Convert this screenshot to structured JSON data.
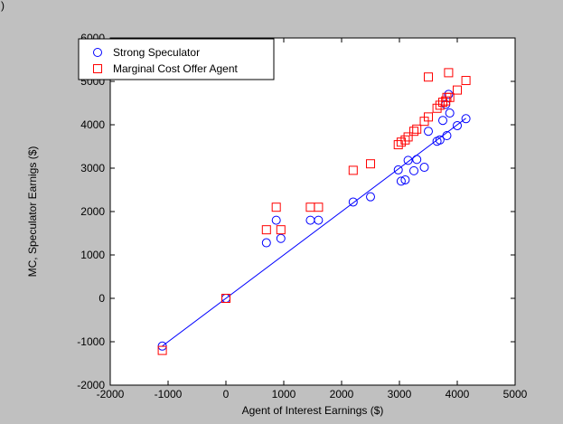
{
  "header": {
    "corner_text": ")"
  },
  "chart_data": {
    "type": "scatter",
    "title": "",
    "xlabel": "Agent of Interest Earnings ($)",
    "ylabel": "MC, Speculator Earnigs ($)",
    "xlim": [
      -2000,
      5000
    ],
    "ylim": [
      -2000,
      6000
    ],
    "xticks": [
      -2000,
      -1000,
      0,
      1000,
      2000,
      3000,
      4000,
      5000
    ],
    "yticks": [
      -2000,
      -1000,
      0,
      1000,
      2000,
      3000,
      4000,
      5000,
      6000
    ],
    "xtick_labels": [
      "-2000",
      "-1000",
      "0",
      "1000",
      "2000",
      "3000",
      "4000",
      "5000"
    ],
    "ytick_labels": [
      "-2000",
      "-1000",
      "0",
      "1000",
      "2000",
      "3000",
      "4000",
      "5000",
      "6000"
    ],
    "grid": false,
    "legend_position": "top-left",
    "series": [
      {
        "name": "Strong Speculator",
        "marker": "circle",
        "color": "#0000ff",
        "x": [
          -1100,
          0,
          700,
          870,
          950,
          1460,
          1600,
          2200,
          2500,
          2980,
          3030,
          3100,
          3150,
          3250,
          3300,
          3430,
          3500,
          3650,
          3700,
          3750,
          3800,
          3820,
          3850,
          3870,
          4000,
          4150
        ],
        "y": [
          -1100,
          0,
          1280,
          1800,
          1380,
          1800,
          1800,
          2220,
          2340,
          2960,
          2700,
          2730,
          3180,
          2940,
          3200,
          3020,
          3850,
          3620,
          3650,
          4100,
          4470,
          3750,
          4700,
          4270,
          3980,
          4140
        ]
      },
      {
        "name": "Marginal Cost Offer Agent",
        "marker": "square",
        "color": "#ff0000",
        "x": [
          -1100,
          0,
          700,
          870,
          950,
          1460,
          1600,
          2200,
          2500,
          2980,
          3030,
          3100,
          3150,
          3250,
          3300,
          3430,
          3500,
          3500,
          3650,
          3700,
          3750,
          3800,
          3820,
          3850,
          3870,
          4000,
          4150
        ],
        "y": [
          -1200,
          0,
          1580,
          2100,
          1580,
          2100,
          2100,
          2950,
          3100,
          3540,
          3600,
          3650,
          3720,
          3850,
          3900,
          4080,
          4180,
          5100,
          4380,
          4450,
          4520,
          4550,
          4630,
          5200,
          4630,
          4800,
          5020
        ]
      }
    ],
    "fit_line": {
      "color": "#0000ff",
      "x": [
        -1100,
        4150
      ],
      "y": [
        -1100,
        4150
      ]
    }
  }
}
